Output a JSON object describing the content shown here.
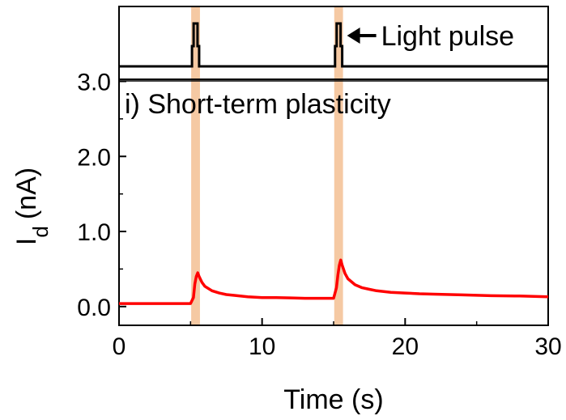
{
  "chart_data": {
    "type": "line",
    "title": "",
    "xlabel": "Time (s)",
    "ylabel": "I",
    "ylabel_sub": "d",
    "ylabel_unit": "(nA)",
    "xlim": [
      0,
      30
    ],
    "ylim": [
      -0.25,
      3.0
    ],
    "xticks": [
      0,
      10,
      20,
      30
    ],
    "xtick_labels": [
      "0",
      "10",
      "20",
      "30"
    ],
    "yticks": [
      0.0,
      1.0,
      2.0,
      3.0
    ],
    "ytick_labels": [
      "0.0",
      "1.0",
      "2.0",
      "3.0"
    ],
    "grid": false,
    "annotations": {
      "panel_label": "i) Short-term plasticity",
      "pulse_label": "Light pulse"
    },
    "colors": {
      "series": "#ff0000",
      "pulse_band": "#f5c9a3",
      "axis": "#000000"
    },
    "light_pulses": [
      {
        "start": 5.1,
        "end": 5.6
      },
      {
        "start": 15.1,
        "end": 15.6
      }
    ],
    "series": [
      {
        "x": [
          0,
          1,
          2,
          3,
          4,
          5,
          5.2,
          5.3,
          5.4,
          5.5,
          5.6,
          5.8,
          6.0,
          6.5,
          7.0,
          7.5,
          8.0,
          9.0,
          10.0,
          11.0,
          12.0,
          13.0,
          14.0,
          15.0,
          15.2,
          15.3,
          15.4,
          15.5,
          15.6,
          15.8,
          16.0,
          16.5,
          17.0,
          17.5,
          18.0,
          19.0,
          20.0,
          21.0,
          22.0,
          24.0,
          26.0,
          28.0,
          30.0
        ],
        "values": [
          0.04,
          0.04,
          0.04,
          0.04,
          0.04,
          0.04,
          0.12,
          0.3,
          0.4,
          0.45,
          0.4,
          0.32,
          0.27,
          0.21,
          0.18,
          0.16,
          0.15,
          0.13,
          0.12,
          0.12,
          0.115,
          0.11,
          0.11,
          0.11,
          0.25,
          0.42,
          0.55,
          0.62,
          0.55,
          0.44,
          0.37,
          0.29,
          0.25,
          0.23,
          0.21,
          0.19,
          0.18,
          0.17,
          0.165,
          0.155,
          0.145,
          0.14,
          0.13
        ]
      }
    ]
  }
}
